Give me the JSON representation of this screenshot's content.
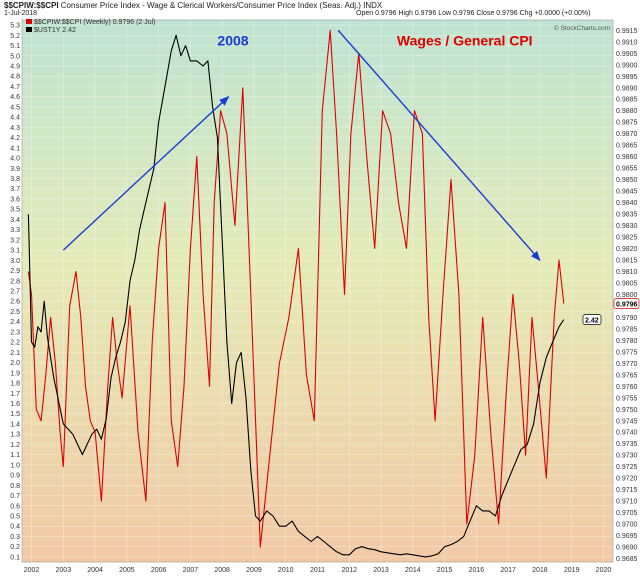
{
  "header": {
    "symbol": "$$CPIW:$$CPI",
    "description": "Consumer Price Index - Wage & Clerical Workers/Consumer Price Index (Seas. Adj.) INDX",
    "date": "1-Jul-2018",
    "open_label": "Open",
    "open_value": "0.9796",
    "high_label": "High",
    "high_value": "0.9796",
    "low_label": "Low",
    "low_value": "0.9796",
    "close_label": "Close",
    "close_value": "0.9796",
    "chg_label": "Chg",
    "chg_value": "+0.0000 (+0.00%)",
    "watermark": "© StockCharts.com"
  },
  "chart_data": {
    "type": "line",
    "title": "",
    "legend": {
      "position": "top-left",
      "entries": [
        {
          "label": "$$CPIW:$$CPI (Weekly) 0.9796 (2 Jul)",
          "color": "#dd0000"
        },
        {
          "label": "$UST1Y 2.42",
          "color": "#000000"
        }
      ]
    },
    "x_ticks": [
      "2002",
      "2003",
      "2004",
      "2005",
      "2006",
      "2007",
      "2008",
      "2009",
      "2010",
      "2011",
      "2012",
      "2013",
      "2014",
      "2015",
      "2016",
      "2017",
      "2018",
      "2019",
      "2020"
    ],
    "xlim": [
      2001.7,
      2020.3
    ],
    "left_axis": {
      "ticks": [
        "0.1",
        "0.2",
        "0.3",
        "0.4",
        "0.5",
        "0.6",
        "0.7",
        "0.8",
        "0.9",
        "1.0",
        "1.1",
        "1.2",
        "1.3",
        "1.4",
        "1.5",
        "1.6",
        "1.7",
        "1.8",
        "1.9",
        "2.0",
        "2.1",
        "2.2",
        "2.3",
        "2.4",
        "2.5",
        "2.6",
        "2.7",
        "2.8",
        "2.9",
        "3.0",
        "3.1",
        "3.2",
        "3.3",
        "3.4",
        "3.5",
        "3.6",
        "3.7",
        "3.8",
        "3.9",
        "4.0",
        "4.1",
        "4.2",
        "4.3",
        "4.4",
        "4.5",
        "4.6",
        "4.7",
        "4.8",
        "4.9",
        "5.0",
        "5.1",
        "5.2",
        "5.3"
      ],
      "ylim": [
        0.05,
        5.35
      ]
    },
    "right_axis": {
      "ticks": [
        "0.9685",
        "0.9690",
        "0.9695",
        "0.9700",
        "0.9705",
        "0.9710",
        "0.9715",
        "0.9720",
        "0.9725",
        "0.9730",
        "0.9735",
        "0.9740",
        "0.9745",
        "0.9750",
        "0.9755",
        "0.9760",
        "0.9765",
        "0.9770",
        "0.9775",
        "0.9780",
        "0.9785",
        "0.9790",
        "0.9795",
        "0.9800",
        "0.9805",
        "0.9810",
        "0.9815",
        "0.9820",
        "0.9825",
        "0.9830",
        "0.9835",
        "0.9840",
        "0.9845",
        "0.9850",
        "0.9855",
        "0.9860",
        "0.9865",
        "0.9870",
        "0.9875",
        "0.9880",
        "0.9885",
        "0.9890",
        "0.9895",
        "0.9900",
        "0.9905",
        "0.9910",
        "0.9915"
      ],
      "ylim": [
        0.96835,
        0.99195
      ]
    },
    "last_labels": {
      "ratio": "0.9796",
      "yield": "2.42"
    },
    "series": [
      {
        "name": "$$CPIW:$$CPI",
        "axis": "right",
        "color": "#dd0000",
        "points": [
          [
            2001.9,
            0.981
          ],
          [
            2002.0,
            0.98
          ],
          [
            2002.15,
            0.975
          ],
          [
            2002.3,
            0.9745
          ],
          [
            2002.45,
            0.9765
          ],
          [
            2002.6,
            0.979
          ],
          [
            2002.75,
            0.977
          ],
          [
            2002.9,
            0.974
          ],
          [
            2003.0,
            0.9725
          ],
          [
            2003.2,
            0.9795
          ],
          [
            2003.4,
            0.981
          ],
          [
            2003.55,
            0.979
          ],
          [
            2003.7,
            0.976
          ],
          [
            2003.85,
            0.9745
          ],
          [
            2004.0,
            0.974
          ],
          [
            2004.2,
            0.971
          ],
          [
            2004.4,
            0.976
          ],
          [
            2004.55,
            0.979
          ],
          [
            2004.7,
            0.977
          ],
          [
            2004.85,
            0.9755
          ],
          [
            2005.1,
            0.9795
          ],
          [
            2005.35,
            0.974
          ],
          [
            2005.6,
            0.971
          ],
          [
            2005.8,
            0.978
          ],
          [
            2006.0,
            0.982
          ],
          [
            2006.2,
            0.984
          ],
          [
            2006.4,
            0.9745
          ],
          [
            2006.6,
            0.9725
          ],
          [
            2006.8,
            0.976
          ],
          [
            2007.0,
            0.982
          ],
          [
            2007.2,
            0.986
          ],
          [
            2007.4,
            0.98
          ],
          [
            2007.6,
            0.976
          ],
          [
            2007.75,
            0.984
          ],
          [
            2007.95,
            0.988
          ],
          [
            2008.15,
            0.987
          ],
          [
            2008.4,
            0.983
          ],
          [
            2008.65,
            0.989
          ],
          [
            2008.9,
            0.98
          ],
          [
            2009.2,
            0.969
          ],
          [
            2009.5,
            0.973
          ],
          [
            2009.8,
            0.977
          ],
          [
            2010.1,
            0.979
          ],
          [
            2010.4,
            0.982
          ],
          [
            2010.65,
            0.9765
          ],
          [
            2010.9,
            0.9745
          ],
          [
            2011.15,
            0.988
          ],
          [
            2011.4,
            0.9915
          ],
          [
            2011.6,
            0.987
          ],
          [
            2011.85,
            0.98
          ],
          [
            2012.05,
            0.987
          ],
          [
            2012.3,
            0.9905
          ],
          [
            2012.55,
            0.986
          ],
          [
            2012.8,
            0.982
          ],
          [
            2013.05,
            0.988
          ],
          [
            2013.3,
            0.987
          ],
          [
            2013.55,
            0.984
          ],
          [
            2013.8,
            0.982
          ],
          [
            2014.05,
            0.988
          ],
          [
            2014.3,
            0.987
          ],
          [
            2014.5,
            0.979
          ],
          [
            2014.7,
            0.9745
          ],
          [
            2014.95,
            0.98
          ],
          [
            2015.2,
            0.985
          ],
          [
            2015.45,
            0.98
          ],
          [
            2015.7,
            0.97
          ],
          [
            2015.95,
            0.973
          ],
          [
            2016.2,
            0.979
          ],
          [
            2016.45,
            0.974
          ],
          [
            2016.7,
            0.97
          ],
          [
            2016.95,
            0.976
          ],
          [
            2017.15,
            0.98
          ],
          [
            2017.35,
            0.977
          ],
          [
            2017.55,
            0.973
          ],
          [
            2017.75,
            0.979
          ],
          [
            2017.95,
            0.976
          ],
          [
            2018.2,
            0.972
          ],
          [
            2018.45,
            0.979
          ],
          [
            2018.6,
            0.9815
          ],
          [
            2018.75,
            0.9796
          ]
        ]
      },
      {
        "name": "$UST1Y",
        "axis": "left",
        "color": "#000000",
        "points": [
          [
            2001.9,
            3.45
          ],
          [
            2002.0,
            2.2
          ],
          [
            2002.1,
            2.15
          ],
          [
            2002.2,
            2.35
          ],
          [
            2002.3,
            2.3
          ],
          [
            2002.4,
            2.6
          ],
          [
            2002.5,
            2.25
          ],
          [
            2002.6,
            2.05
          ],
          [
            2002.7,
            1.85
          ],
          [
            2002.8,
            1.7
          ],
          [
            2002.9,
            1.55
          ],
          [
            2003.0,
            1.4
          ],
          [
            2003.15,
            1.35
          ],
          [
            2003.3,
            1.3
          ],
          [
            2003.45,
            1.2
          ],
          [
            2003.6,
            1.1
          ],
          [
            2003.75,
            1.2
          ],
          [
            2003.9,
            1.3
          ],
          [
            2004.05,
            1.35
          ],
          [
            2004.2,
            1.25
          ],
          [
            2004.35,
            1.45
          ],
          [
            2004.5,
            1.85
          ],
          [
            2004.65,
            2.05
          ],
          [
            2004.8,
            2.2
          ],
          [
            2004.95,
            2.4
          ],
          [
            2005.1,
            2.8
          ],
          [
            2005.25,
            3.0
          ],
          [
            2005.4,
            3.3
          ],
          [
            2005.55,
            3.5
          ],
          [
            2005.7,
            3.7
          ],
          [
            2005.85,
            3.9
          ],
          [
            2006.0,
            4.35
          ],
          [
            2006.2,
            4.7
          ],
          [
            2006.4,
            5.05
          ],
          [
            2006.55,
            5.2
          ],
          [
            2006.7,
            5.0
          ],
          [
            2006.85,
            5.1
          ],
          [
            2007.0,
            4.95
          ],
          [
            2007.2,
            4.95
          ],
          [
            2007.4,
            4.9
          ],
          [
            2007.55,
            4.95
          ],
          [
            2007.7,
            4.5
          ],
          [
            2007.85,
            4.2
          ],
          [
            2008.0,
            3.2
          ],
          [
            2008.15,
            2.2
          ],
          [
            2008.3,
            1.6
          ],
          [
            2008.45,
            2.0
          ],
          [
            2008.6,
            2.1
          ],
          [
            2008.75,
            1.65
          ],
          [
            2008.9,
            0.95
          ],
          [
            2009.05,
            0.5
          ],
          [
            2009.2,
            0.45
          ],
          [
            2009.4,
            0.55
          ],
          [
            2009.6,
            0.5
          ],
          [
            2009.8,
            0.4
          ],
          [
            2010.0,
            0.4
          ],
          [
            2010.2,
            0.45
          ],
          [
            2010.4,
            0.35
          ],
          [
            2010.6,
            0.3
          ],
          [
            2010.8,
            0.25
          ],
          [
            2011.0,
            0.3
          ],
          [
            2011.2,
            0.25
          ],
          [
            2011.4,
            0.2
          ],
          [
            2011.6,
            0.15
          ],
          [
            2011.8,
            0.12
          ],
          [
            2012.0,
            0.12
          ],
          [
            2012.2,
            0.18
          ],
          [
            2012.4,
            0.2
          ],
          [
            2012.6,
            0.18
          ],
          [
            2012.8,
            0.17
          ],
          [
            2013.0,
            0.15
          ],
          [
            2013.2,
            0.14
          ],
          [
            2013.4,
            0.13
          ],
          [
            2013.6,
            0.12
          ],
          [
            2013.8,
            0.13
          ],
          [
            2014.0,
            0.12
          ],
          [
            2014.2,
            0.11
          ],
          [
            2014.4,
            0.1
          ],
          [
            2014.6,
            0.11
          ],
          [
            2014.8,
            0.13
          ],
          [
            2015.0,
            0.2
          ],
          [
            2015.2,
            0.22
          ],
          [
            2015.4,
            0.25
          ],
          [
            2015.6,
            0.3
          ],
          [
            2015.8,
            0.45
          ],
          [
            2016.0,
            0.6
          ],
          [
            2016.2,
            0.55
          ],
          [
            2016.4,
            0.55
          ],
          [
            2016.6,
            0.5
          ],
          [
            2016.8,
            0.7
          ],
          [
            2017.0,
            0.85
          ],
          [
            2017.2,
            1.0
          ],
          [
            2017.4,
            1.15
          ],
          [
            2017.6,
            1.2
          ],
          [
            2017.8,
            1.4
          ],
          [
            2018.0,
            1.8
          ],
          [
            2018.2,
            2.05
          ],
          [
            2018.4,
            2.2
          ],
          [
            2018.6,
            2.35
          ],
          [
            2018.75,
            2.42
          ]
        ]
      }
    ],
    "annotations": [
      {
        "text": "2008",
        "color": "#1a3cd6",
        "x": 2007.85,
        "y": 5.1,
        "axis": "left"
      },
      {
        "text": "Wages / General CPI",
        "color": "#e00000",
        "x": 2013.5,
        "y": 5.1,
        "axis": "left"
      }
    ],
    "arrows": [
      {
        "color": "#1a3cd6",
        "from": [
          2003.0,
          3.1
        ],
        "to": [
          2008.2,
          4.6
        ],
        "axis": "left"
      },
      {
        "color": "#1a3cd6",
        "from": [
          2011.65,
          5.25
        ],
        "to": [
          2018.0,
          3.0
        ],
        "axis": "left"
      }
    ],
    "grid": true
  }
}
